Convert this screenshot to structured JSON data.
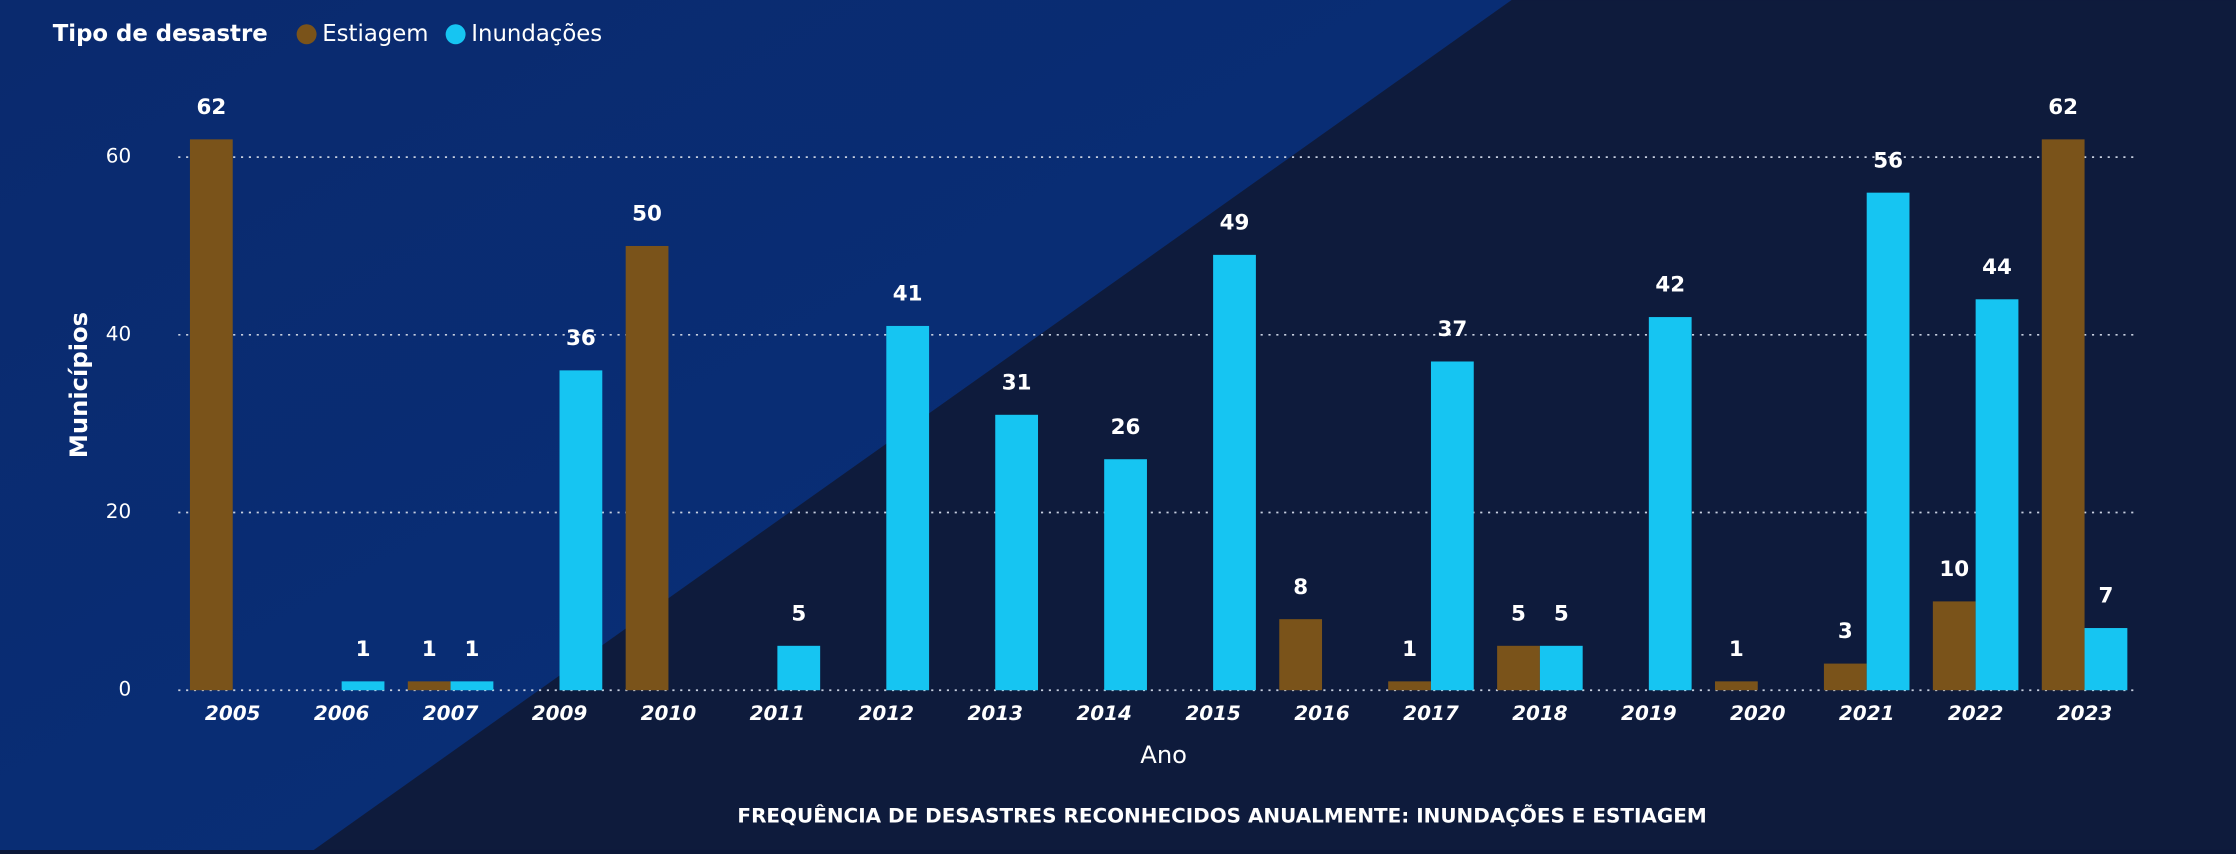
{
  "chart_data": {
    "type": "bar",
    "title": "FREQUÊNCIA DE DESASTRES RECONHECIDOS ANUALMENTE: INUNDAÇÕES E ESTIAGEM",
    "legend_title": "Tipo de desastre",
    "x_label": "Ano",
    "y_label": "Municípios",
    "categories": [
      "2005",
      "2006",
      "2007",
      "2009",
      "2010",
      "2011",
      "2012",
      "2013",
      "2014",
      "2015",
      "2016",
      "2017",
      "2018",
      "2019",
      "2020",
      "2021",
      "2022",
      "2023"
    ],
    "series": [
      {
        "name": "Estiagem",
        "color": "#7a531a",
        "values": [
          62,
          null,
          1,
          null,
          50,
          null,
          null,
          null,
          null,
          null,
          8,
          1,
          5,
          null,
          1,
          3,
          10,
          62
        ]
      },
      {
        "name": "Inundações",
        "color": "#16c5f2",
        "values": [
          null,
          1,
          1,
          36,
          null,
          5,
          41,
          31,
          26,
          49,
          null,
          37,
          5,
          42,
          null,
          56,
          44,
          7
        ]
      }
    ],
    "ylim": [
      0,
      65
    ],
    "yticks": [
      0,
      20,
      40,
      60
    ],
    "grid": true,
    "legend": "top-left"
  }
}
